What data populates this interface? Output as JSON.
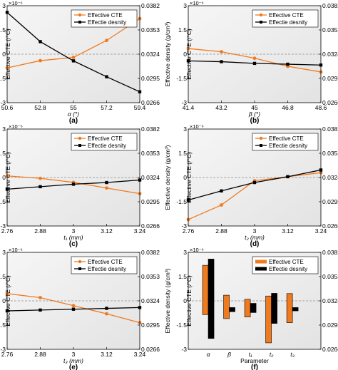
{
  "colors": {
    "cte": "#F07A1E",
    "density": "#000000",
    "panel_bg": "#e3e3e3",
    "zero_line": "#8c8c8c"
  },
  "chart_data": [
    {
      "panel": "(a)",
      "type": "line",
      "x": [
        50.6,
        52.8,
        55,
        57.2,
        59.4
      ],
      "x_ticks": [
        "50.6",
        "52.8",
        "55",
        "57.2",
        "59.4"
      ],
      "xlabel": "α (°)",
      "ylabel_left": "Effective CTE (/°C)",
      "ylabel_right": "Effective density (g/cm³)",
      "y_exponent": "×10⁻⁶",
      "ylim_left": [
        -3,
        3
      ],
      "ylim_right": [
        0.0266,
        0.0382
      ],
      "y_ticks_left": [
        "-3",
        "-1.5",
        "0",
        "1.5",
        "3"
      ],
      "y_ticks_right": [
        "0.0266",
        "0.0295",
        "0.0324",
        "0.0353",
        "0.0382"
      ],
      "legend": "top-right",
      "series": [
        {
          "name": "Effective CTE",
          "axis": "left",
          "marker": "circle",
          "values": [
            -0.85,
            -0.4,
            -0.2,
            0.85,
            2.2
          ]
        },
        {
          "name": "Effectie desnity",
          "axis": "right",
          "marker": "square",
          "values": [
            0.0374,
            0.0339,
            0.0316,
            0.0297,
            0.0279
          ]
        }
      ]
    },
    {
      "panel": "(b)",
      "type": "line",
      "x": [
        41.4,
        43.2,
        45,
        46.8,
        48.6
      ],
      "x_ticks": [
        "41.4",
        "43.2",
        "45",
        "46.8",
        "48.6"
      ],
      "xlabel": "β (°)",
      "ylabel_left": "Effective CTE (/°C)",
      "ylabel_right": "Effective density (g/cm³)",
      "y_exponent": "×10⁻⁶",
      "ylim_left": [
        -3,
        3
      ],
      "ylim_right": [
        0.0266,
        0.0382
      ],
      "y_ticks_left": [
        "-3",
        "-1.5",
        "0",
        "1.5",
        "3"
      ],
      "y_ticks_right": [
        "0.0266",
        "0.0295",
        "0.0324",
        "0.0353",
        "0.0382"
      ],
      "legend": "top-right",
      "series": [
        {
          "name": "Effective CTE",
          "axis": "left",
          "marker": "circle",
          "values": [
            0.35,
            0.15,
            -0.25,
            -0.75,
            -1.1
          ]
        },
        {
          "name": "Effectie desnity",
          "axis": "right",
          "marker": "square",
          "values": [
            0.0316,
            0.0315,
            0.0313,
            0.0312,
            0.0311
          ]
        }
      ]
    },
    {
      "panel": "(c)",
      "type": "line",
      "x": [
        2.76,
        2.88,
        3,
        3.12,
        3.24
      ],
      "x_ticks": [
        "2.76",
        "2.88",
        "3",
        "3.12",
        "3.24"
      ],
      "xlabel": "t₁ (mm)",
      "ylabel_left": "Effective CTE (/°C)",
      "ylabel_right": "Effective density (g/cm³)",
      "y_exponent": "×10⁻⁶",
      "ylim_left": [
        -3,
        3
      ],
      "ylim_right": [
        0.0266,
        0.0382
      ],
      "y_ticks_left": [
        "-3",
        "-1.5",
        "0",
        "1.5",
        "3"
      ],
      "y_ticks_right": [
        "0.0266",
        "0.0295",
        "0.0324",
        "0.0353",
        "0.0382"
      ],
      "legend": "top-right",
      "series": [
        {
          "name": "Effective CTE",
          "axis": "left",
          "marker": "circle",
          "values": [
            0.1,
            -0.05,
            -0.3,
            -0.65,
            -1.0
          ]
        },
        {
          "name": "Effectie desnity",
          "axis": "right",
          "marker": "square",
          "values": [
            0.031,
            0.0313,
            0.0316,
            0.0318,
            0.0321
          ]
        }
      ]
    },
    {
      "panel": "(d)",
      "type": "line",
      "x": [
        2.76,
        2.88,
        3,
        3.12,
        3.24
      ],
      "x_ticks": [
        "2.76",
        "2.88",
        "3",
        "3.12",
        "3.24"
      ],
      "xlabel": "t₂ (mm)",
      "ylabel_left": "Effective CTE (/°C)",
      "ylabel_right": "Effective density (g/cm³)",
      "y_exponent": "×10⁻⁶",
      "ylim_left": [
        -3,
        3
      ],
      "ylim_right": [
        0.0266,
        0.0382
      ],
      "y_ticks_left": [
        "-3",
        "-1.5",
        "0",
        "1.5",
        "3"
      ],
      "y_ticks_right": [
        "0.0266",
        "0.0295",
        "0.0324",
        "0.0353",
        "0.0382"
      ],
      "legend": "top-right",
      "series": [
        {
          "name": "Effective CTE",
          "axis": "left",
          "marker": "circle",
          "values": [
            -2.6,
            -1.7,
            -0.2,
            0.05,
            0.3
          ]
        },
        {
          "name": "Effectie desnity",
          "axis": "right",
          "marker": "square",
          "values": [
            0.0297,
            0.0308,
            0.0318,
            0.0325,
            0.0333
          ]
        }
      ]
    },
    {
      "panel": "(e)",
      "type": "line",
      "x": [
        2.76,
        2.88,
        3,
        3.12,
        3.24
      ],
      "x_ticks": [
        "2.76",
        "2.88",
        "3",
        "3.12",
        "3.24"
      ],
      "xlabel": "t₃ (mm)",
      "ylabel_left": "Effective CTE (/°C)",
      "ylabel_right": "Effective density (g/cm³)",
      "y_exponent": "×10⁻⁶",
      "ylim_left": [
        -3,
        3
      ],
      "ylim_right": [
        0.0266,
        0.0382
      ],
      "y_ticks_left": [
        "-3",
        "-1.5",
        "0",
        "1.5",
        "3"
      ],
      "y_ticks_right": [
        "0.0266",
        "0.0295",
        "0.0324",
        "0.0353",
        "0.0382"
      ],
      "legend": "top-right",
      "series": [
        {
          "name": "Effective CTE",
          "axis": "left",
          "marker": "circle",
          "values": [
            0.45,
            0.2,
            -0.3,
            -0.8,
            -1.35
          ]
        },
        {
          "name": "Effectie desnity",
          "axis": "right",
          "marker": "square",
          "values": [
            0.0312,
            0.0313,
            0.0314,
            0.0315,
            0.0316
          ]
        }
      ]
    },
    {
      "panel": "(f)",
      "type": "bar",
      "categories": [
        "α",
        "β",
        "t₁",
        "t₂",
        "t₃"
      ],
      "xlabel": "Parameter",
      "ylabel_left": "Effective CTE (/°C)",
      "ylabel_right": "Effective density (g/cm³)",
      "y_exponent": "×10⁻⁶",
      "ylim_left": [
        -3,
        3
      ],
      "ylim_right": [
        0.0266,
        0.0382
      ],
      "y_ticks_left": [
        "-3",
        "-1.5",
        "0",
        "1.5",
        "3"
      ],
      "y_ticks_right": [
        "0.0266",
        "0.0295",
        "0.0324",
        "0.0353",
        "0.0382"
      ],
      "legend": "top-right",
      "series": [
        {
          "name": "Effective CTE",
          "axis": "left",
          "ranges": [
            [
              -0.85,
              2.2
            ],
            [
              -1.1,
              0.35
            ],
            [
              -1.0,
              0.1
            ],
            [
              -2.6,
              0.3
            ],
            [
              -1.35,
              0.45
            ]
          ]
        },
        {
          "name": "Effectie desnity",
          "axis": "right",
          "ranges": [
            [
              0.0279,
              0.0374
            ],
            [
              0.0311,
              0.0316
            ],
            [
              0.031,
              0.0321
            ],
            [
              0.0297,
              0.0333
            ],
            [
              0.0312,
              0.0316
            ]
          ]
        }
      ]
    }
  ]
}
